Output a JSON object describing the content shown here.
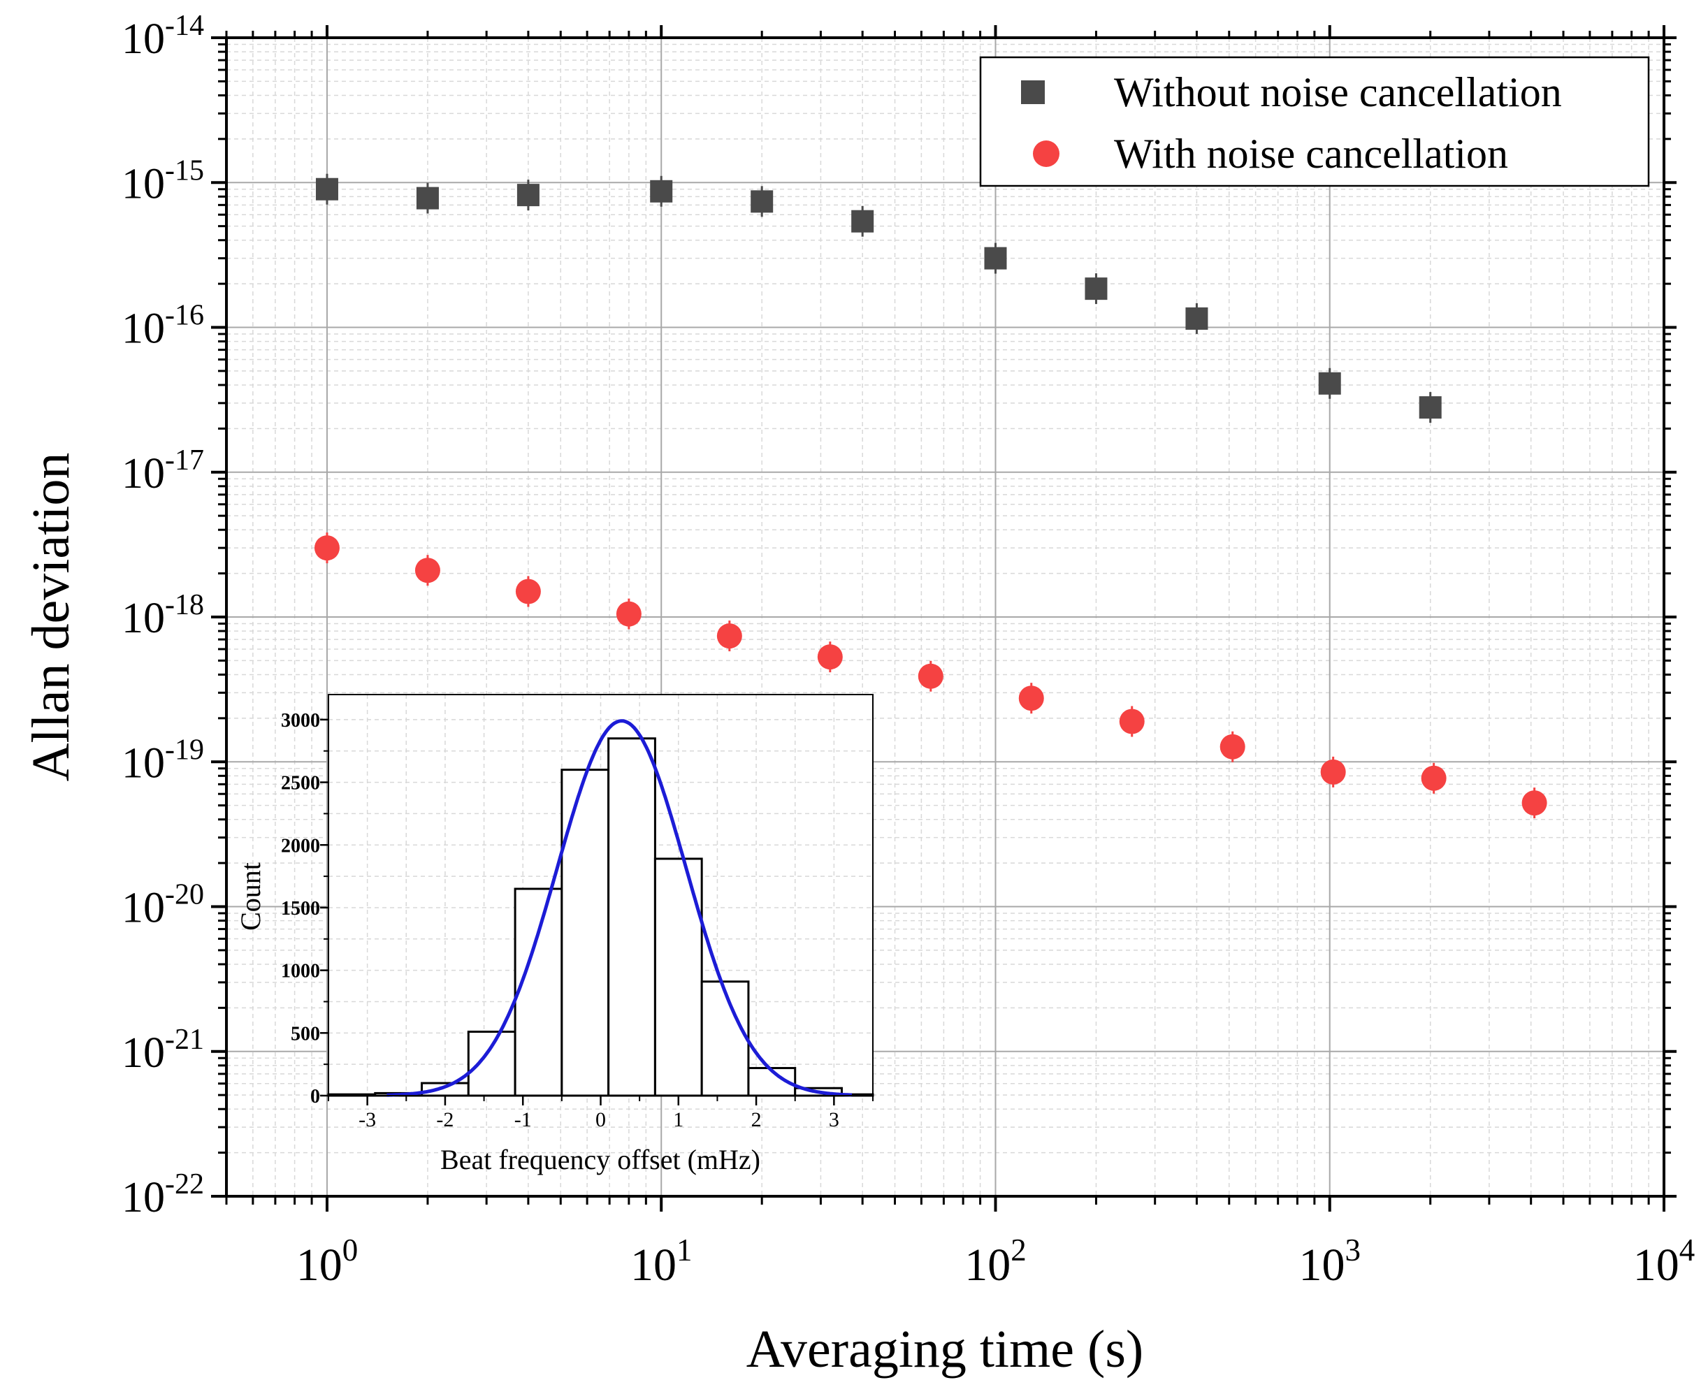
{
  "chart_data": [
    {
      "type": "scatter",
      "xlabel": "Averaging time (s)",
      "ylabel": "Allan deviation",
      "xscale": "log",
      "yscale": "log",
      "xlim": [
        0.5,
        10000
      ],
      "ylim": [
        1e-22,
        1e-14
      ],
      "x_ticks": [
        {
          "value": 1,
          "base": "10",
          "exp": "0"
        },
        {
          "value": 10,
          "base": "10",
          "exp": "1"
        },
        {
          "value": 100,
          "base": "10",
          "exp": "2"
        },
        {
          "value": 1000,
          "base": "10",
          "exp": "3"
        },
        {
          "value": 10000,
          "base": "10",
          "exp": "4"
        }
      ],
      "y_ticks": [
        {
          "value": 1e-14,
          "base": "10",
          "exp": "-14"
        },
        {
          "value": 1e-15,
          "base": "10",
          "exp": "-15"
        },
        {
          "value": 1e-16,
          "base": "10",
          "exp": "-16"
        },
        {
          "value": 1e-17,
          "base": "10",
          "exp": "-17"
        },
        {
          "value": 1e-18,
          "base": "10",
          "exp": "-18"
        },
        {
          "value": 1e-19,
          "base": "10",
          "exp": "-19"
        },
        {
          "value": 1e-20,
          "base": "10",
          "exp": "-20"
        },
        {
          "value": 1e-21,
          "base": "10",
          "exp": "-21"
        },
        {
          "value": 1e-22,
          "base": "10",
          "exp": "-22"
        }
      ],
      "grid": true,
      "legend_position": "top-right",
      "series": [
        {
          "name": "Without noise cancellation",
          "marker": "square",
          "color": "#4a4a4a",
          "x": [
            1,
            2,
            4,
            10,
            20,
            40,
            100,
            200,
            400,
            1000,
            2000
          ],
          "y": [
            9e-16,
            7.8e-16,
            8.2e-16,
            8.7e-16,
            7.4e-16,
            5.4e-16,
            3e-16,
            1.85e-16,
            1.15e-16,
            4.1e-17,
            2.8e-17
          ]
        },
        {
          "name": "With noise cancellation",
          "marker": "circle",
          "color": "#f54242",
          "x": [
            1,
            2,
            4,
            8,
            16,
            32,
            64,
            128,
            256,
            512,
            1024,
            2048,
            4096
          ],
          "y": [
            3e-18,
            2.1e-18,
            1.5e-18,
            1.05e-18,
            7.4e-19,
            5.3e-19,
            3.9e-19,
            2.75e-19,
            1.9e-19,
            1.27e-19,
            8.5e-20,
            7.7e-20,
            5.2e-20
          ]
        }
      ]
    },
    {
      "type": "bar",
      "inset": true,
      "xlabel": "Beat frequency offset (mHz)",
      "ylabel": "Count",
      "xlim": [
        -3.5,
        3.5
      ],
      "ylim": [
        0,
        3200
      ],
      "x_ticks": [
        "-3",
        "-2",
        "-1",
        "0",
        "1",
        "2",
        "3"
      ],
      "y_ticks": [
        "0",
        "500",
        "1000",
        "1500",
        "2000",
        "2500",
        "3000"
      ],
      "bin_width": 0.6,
      "bin_edges": [
        -3.5,
        -2.9,
        -2.3,
        -1.7,
        -1.1,
        -0.5,
        0.1,
        0.7,
        1.3,
        1.9,
        2.5,
        3.1,
        3.5
      ],
      "values": [
        10,
        20,
        100,
        510,
        1650,
        2600,
        2850,
        1890,
        910,
        220,
        60,
        10
      ],
      "fit": {
        "type": "gaussian",
        "color": "#1c1cd6",
        "amplitude": 2990,
        "center": 0.27,
        "sigma": 0.83
      }
    }
  ]
}
